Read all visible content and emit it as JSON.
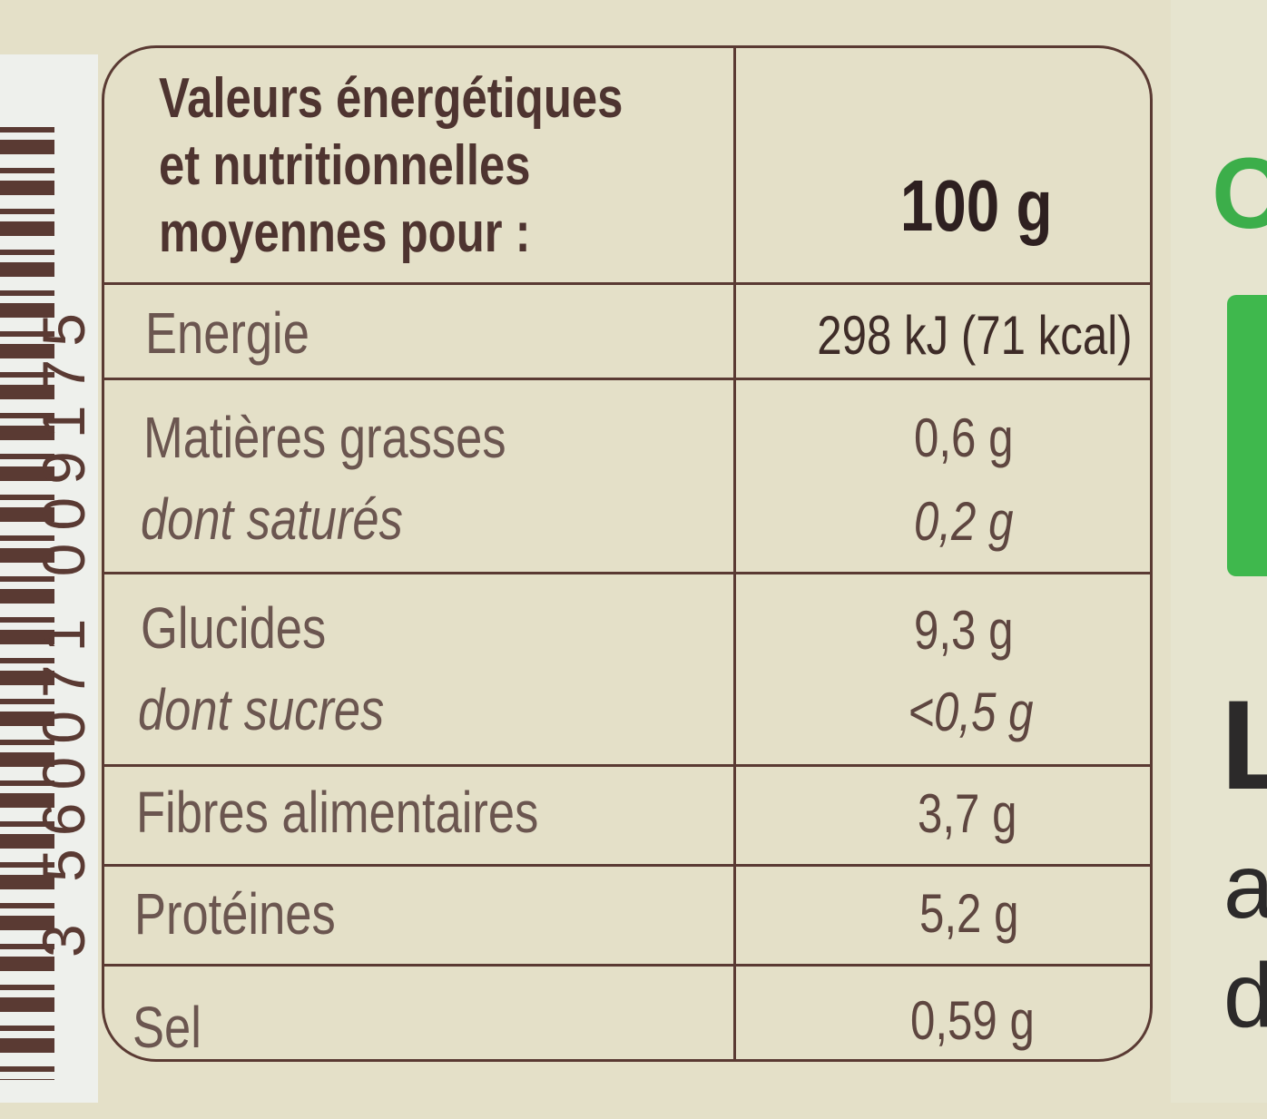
{
  "barcode": {
    "digits": "3 560071 009175"
  },
  "table": {
    "header": {
      "line1": "Valeurs énergétiques",
      "line2": "et nutritionnelles",
      "line3": "moyennes pour :",
      "per": "100 g"
    },
    "rows": [
      {
        "label": "Energie",
        "value": "298 kJ (71 kcal)"
      },
      {
        "label": "Matières grasses",
        "value": "0,6 g"
      },
      {
        "label": "dont saturés",
        "value": "0,2 g"
      },
      {
        "label": "Glucides",
        "value": "9,3 g"
      },
      {
        "label": "dont sucres",
        "value": "<0,5 g"
      },
      {
        "label": "Fibres alimentaires",
        "value": "3,7 g"
      },
      {
        "label": "Protéines",
        "value": "5,2 g"
      },
      {
        "label": "Sel",
        "value": "0,59 g"
      }
    ]
  },
  "side": {
    "c": "C",
    "l": "L",
    "a": "a",
    "d": "d"
  },
  "colors": {
    "ink": "#5a3a33",
    "label_bg": "#e4e0c8",
    "green": "#3fb84d"
  }
}
